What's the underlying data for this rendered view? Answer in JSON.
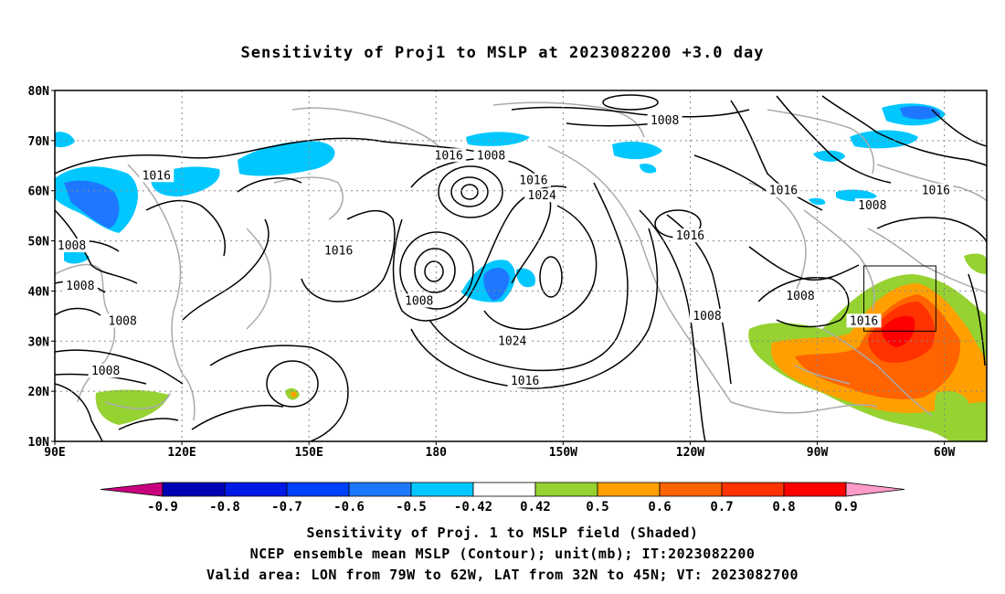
{
  "title": "Sensitivity of Proj1 to MSLP at 2023082200 +3.0 day",
  "lat_labels": [
    "80N",
    "70N",
    "60N",
    "50N",
    "40N",
    "30N",
    "20N",
    "10N"
  ],
  "lon_labels": [
    "90E",
    "120E",
    "150E",
    "180",
    "150W",
    "120W",
    "90W",
    "60W"
  ],
  "contour_labels": [
    {
      "text": "1016",
      "lon": 114,
      "lat": 63
    },
    {
      "text": "1016",
      "lon": 157,
      "lat": 48
    },
    {
      "text": "1016",
      "lon": 183,
      "lat": 67
    },
    {
      "text": "1008",
      "lon": 193,
      "lat": 67
    },
    {
      "text": "1016",
      "lon": 203,
      "lat": 62
    },
    {
      "text": "1024",
      "lon": 205,
      "lat": 59
    },
    {
      "text": "1008",
      "lon": 234,
      "lat": 74
    },
    {
      "text": "1016",
      "lon": 240,
      "lat": 51
    },
    {
      "text": "1016",
      "lon": 262,
      "lat": 60
    },
    {
      "text": "1008",
      "lon": 283,
      "lat": 57
    },
    {
      "text": "1016",
      "lon": 298,
      "lat": 60
    },
    {
      "text": "1008",
      "lon": 94,
      "lat": 49
    },
    {
      "text": "1008",
      "lon": 96,
      "lat": 41
    },
    {
      "text": "1008",
      "lon": 106,
      "lat": 34
    },
    {
      "text": "1008",
      "lon": 102,
      "lat": 24
    },
    {
      "text": "1008",
      "lon": 176,
      "lat": 38
    },
    {
      "text": "1024",
      "lon": 198,
      "lat": 30
    },
    {
      "text": "1016",
      "lon": 201,
      "lat": 22
    },
    {
      "text": "1008",
      "lon": 244,
      "lat": 35
    },
    {
      "text": "1008",
      "lon": 266,
      "lat": 39
    },
    {
      "text": "1016",
      "lon": 281,
      "lat": 34
    }
  ],
  "colorbar": {
    "labels": [
      "-0.9",
      "-0.8",
      "-0.7",
      "-0.6",
      "-0.5",
      "-0.42",
      "0.42",
      "0.5",
      "0.6",
      "0.7",
      "0.8",
      "0.9"
    ],
    "colors": [
      "#0000b4",
      "#0019e6",
      "#0041ff",
      "#1e78ff",
      "#00c8ff",
      "#ffffff",
      "#96d232",
      "#ffa000",
      "#ff6400",
      "#ff3200",
      "#ff0000"
    ],
    "low_end_color": "#c8007d",
    "high_end_color": "#ff9bc8"
  },
  "valid_area": {
    "lon_min": -79,
    "lon_max": -62,
    "lat_min": 32,
    "lat_max": 45
  },
  "footer": {
    "line1": "Sensitivity of Proj. 1 to MSLP field (Shaded)",
    "line2": "NCEP ensemble mean MSLP (Contour); unit(mb); IT:2023082200",
    "line3": "Valid area: LON from 79W to 62W, LAT from 32N to 45N; VT: 2023082700"
  },
  "colors": {
    "land_outline": "#aaaaaa",
    "contour": "#000000",
    "grid": "#888888"
  }
}
